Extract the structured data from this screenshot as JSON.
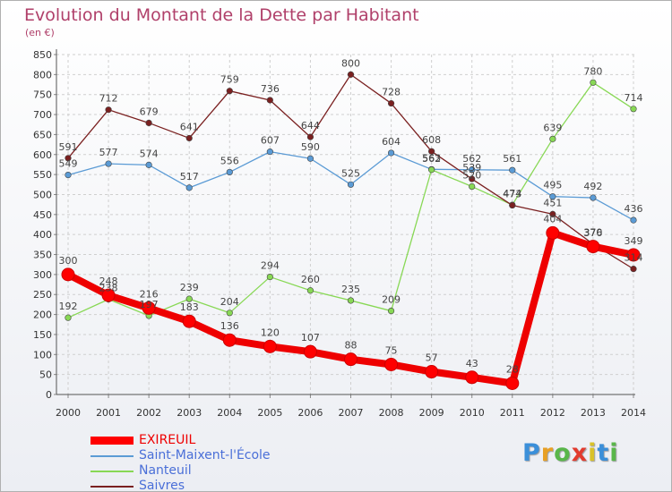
{
  "chart_data": {
    "type": "line",
    "title": "Evolution du Montant de la Dette par Habitant",
    "subtitle": "(en €)",
    "x": [
      "2000",
      "2001",
      "2002",
      "2003",
      "2004",
      "2005",
      "2006",
      "2007",
      "2008",
      "2009",
      "2010",
      "2011",
      "2012",
      "2013",
      "2014"
    ],
    "yticks": [
      "0",
      "50",
      "100",
      "150",
      "200",
      "250",
      "300",
      "350",
      "400",
      "450",
      "500",
      "550",
      "600",
      "650",
      "700",
      "750",
      "800",
      "850"
    ],
    "ylim": [
      0,
      850
    ],
    "grid": true,
    "legend_position": "bottom-left",
    "series": [
      {
        "name": "EXIREUIL",
        "color": "#ee0000",
        "values": [
          300,
          248,
          216,
          183,
          136,
          120,
          107,
          88,
          75,
          57,
          43,
          28,
          404,
          370,
          349
        ]
      },
      {
        "name": "Saint-Maixent-l'École",
        "color": "#5b9bd5",
        "values": [
          549,
          577,
          574,
          517,
          556,
          607,
          590,
          525,
          604,
          563,
          562,
          561,
          495,
          492,
          436
        ]
      },
      {
        "name": "Nanteuil",
        "color": "#88d855",
        "values": [
          192,
          238,
          197,
          239,
          204,
          294,
          260,
          235,
          209,
          562,
          520,
          474,
          639,
          780,
          714
        ]
      },
      {
        "name": "Saivres",
        "color": "#7a2020",
        "values": [
          591,
          712,
          679,
          641,
          759,
          736,
          644,
          800,
          728,
          608,
          539,
          473,
          451,
          376,
          314
        ]
      }
    ]
  },
  "legend": [
    {
      "label": "EXIREUIL",
      "color": "#ff0000",
      "text_color": "#ee0000"
    },
    {
      "label": "Saint-Maixent-l'École",
      "color": "#5b9bd5",
      "text_color": "#4a6fd8"
    },
    {
      "label": "Nanteuil",
      "color": "#88d855",
      "text_color": "#4a6fd8"
    },
    {
      "label": "Saivres",
      "color": "#7a2020",
      "text_color": "#4a6fd8"
    }
  ],
  "logo": {
    "letters": [
      "P",
      "r",
      "o",
      "x",
      "i",
      "t",
      "i"
    ],
    "colors": [
      "#3b8fd9",
      "#e8a024",
      "#59b64a",
      "#e23b2e",
      "#d9c22a",
      "#3b8fd9",
      "#59b64a"
    ]
  }
}
